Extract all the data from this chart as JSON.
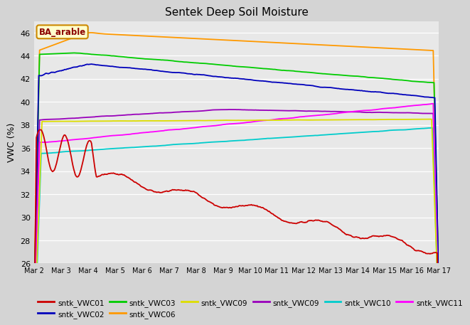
{
  "title": "Sentek Deep Soil Moisture",
  "ylabel": "VWC (%)",
  "ylim": [
    26,
    47
  ],
  "yticks": [
    26,
    28,
    30,
    32,
    34,
    36,
    38,
    40,
    42,
    44,
    46
  ],
  "xlabel_dates": [
    "Mar 2",
    "Mar 3",
    "Mar 4",
    "Mar 5",
    "Mar 6",
    "Mar 7",
    "Mar 8",
    "Mar 9",
    "Mar 10",
    "Mar 11",
    "Mar 12",
    "Mar 13",
    "Mar 14",
    "Mar 15",
    "Mar 16",
    "Mar 17"
  ],
  "annotation_text": "BA_arable",
  "fig_bg": "#d4d4d4",
  "plot_bg": "#e8e8e8",
  "grid_color": "#ffffff",
  "legend_row1": [
    {
      "label": "sntk_VWC01",
      "color": "#cc0000"
    },
    {
      "label": "sntk_VWC02",
      "color": "#0000bb"
    },
    {
      "label": "sntk_VWC03",
      "color": "#00cc00"
    },
    {
      "label": "sntk_VWC06",
      "color": "#ff9900"
    },
    {
      "label": "sntk_VWC09",
      "color": "#dddd00"
    },
    {
      "label": "sntk_VWC09",
      "color": "#9900bb"
    }
  ],
  "legend_row2": [
    {
      "label": "sntk_VWC10",
      "color": "#00cccc"
    },
    {
      "label": "sntk_VWC11",
      "color": "#ff00ff"
    }
  ]
}
